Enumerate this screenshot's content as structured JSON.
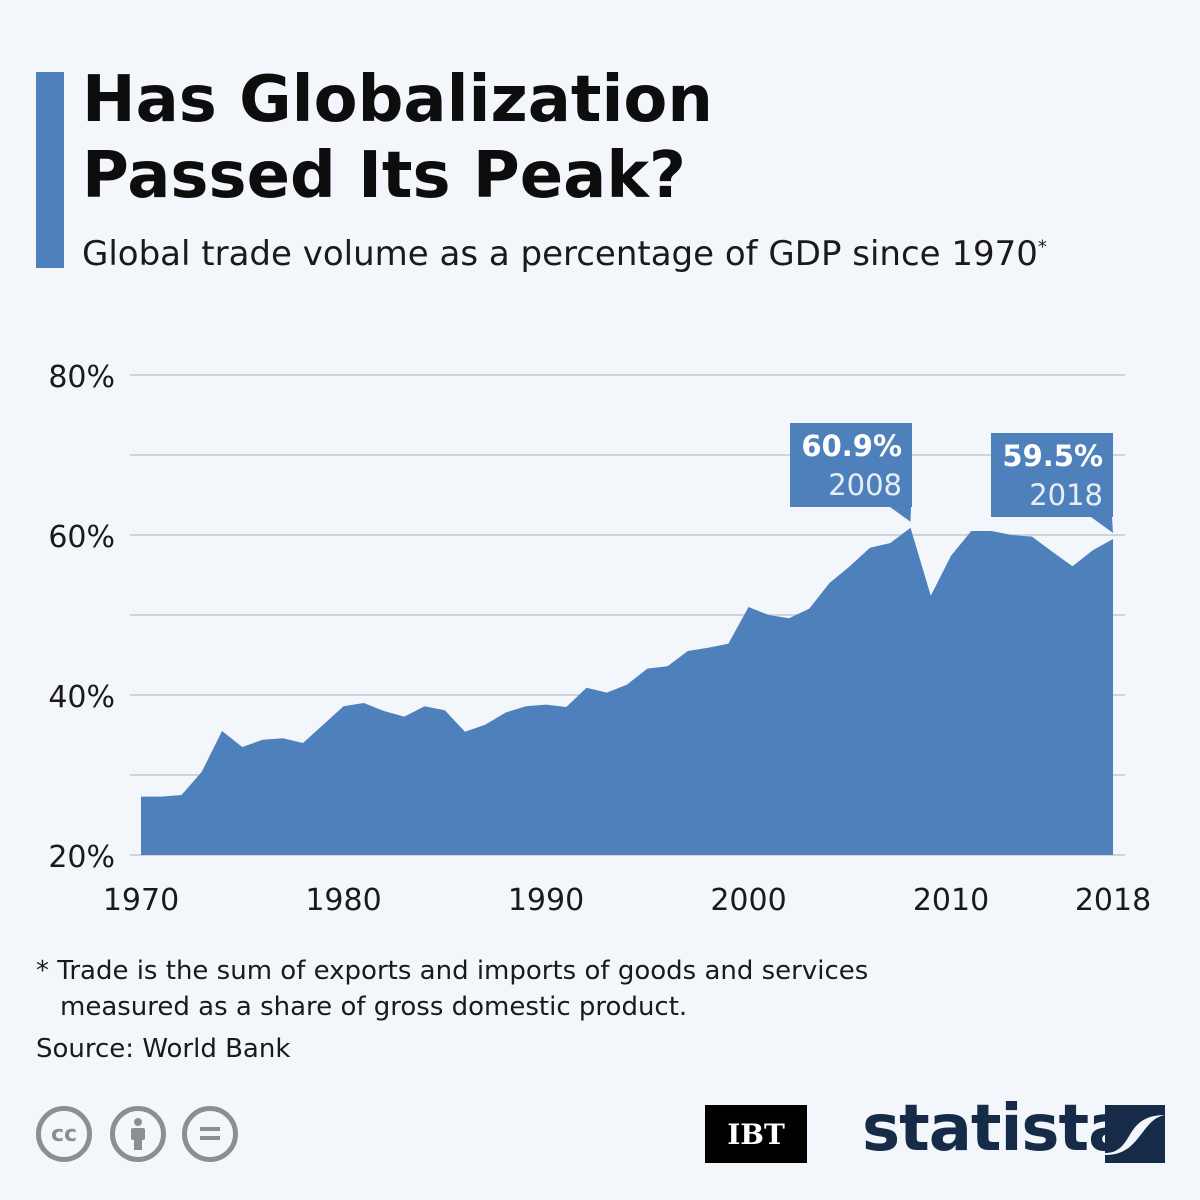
{
  "title": "Has Globalization Passed Its Peak?",
  "title_lines": [
    "Has Globalization",
    "Passed Its Peak?"
  ],
  "subtitle": "Global trade volume as a percentage of GDP since 1970",
  "subtitle_mark": "*",
  "footnote_lines": [
    "* Trade is the sum of exports and imports of goods and services",
    "measured as a share of gross domestic product."
  ],
  "source": "Source: World Bank",
  "logos": {
    "ibt": "IBT",
    "statista": "statista"
  },
  "colors": {
    "area": "#4e81bc",
    "grid": "#c4c8cc",
    "background": "#f3f7fb"
  },
  "chart_data": {
    "type": "area",
    "title": "Has Globalization Passed Its Peak?",
    "subtitle": "Global trade volume as a percentage of GDP since 1970",
    "ylim": [
      20,
      80
    ],
    "yticks": [
      20,
      40,
      60,
      80
    ],
    "ytick_labels": [
      "20%",
      "40%",
      "60%",
      "80%"
    ],
    "xticks": [
      1970,
      1980,
      1990,
      2000,
      2010,
      2018
    ],
    "xtick_labels": [
      "1970",
      "1980",
      "1990",
      "2000",
      "2010",
      "2018"
    ],
    "grid": true,
    "x": [
      1970,
      1971,
      1972,
      1973,
      1974,
      1975,
      1976,
      1977,
      1978,
      1979,
      1980,
      1981,
      1982,
      1983,
      1984,
      1985,
      1986,
      1987,
      1988,
      1989,
      1990,
      1991,
      1992,
      1993,
      1994,
      1995,
      1996,
      1997,
      1998,
      1999,
      2000,
      2001,
      2002,
      2003,
      2004,
      2005,
      2006,
      2007,
      2008,
      2009,
      2010,
      2011,
      2012,
      2013,
      2014,
      2015,
      2016,
      2017,
      2018
    ],
    "values": [
      27.3,
      27.3,
      27.5,
      30.4,
      35.5,
      33.5,
      34.4,
      34.6,
      34.0,
      36.3,
      38.6,
      39.0,
      38.0,
      37.3,
      38.6,
      38.1,
      35.4,
      36.3,
      37.8,
      38.6,
      38.8,
      38.5,
      40.9,
      40.3,
      41.3,
      43.3,
      43.6,
      45.5,
      45.9,
      46.4,
      51.0,
      50.0,
      49.6,
      50.8,
      54.0,
      56.1,
      58.4,
      59.0,
      60.9,
      52.4,
      57.4,
      60.5,
      60.5,
      60.0,
      59.8,
      57.9,
      56.1,
      58.1,
      59.5
    ],
    "annotations": [
      {
        "year": 2008,
        "value_label": "60.9%",
        "year_label": "2008"
      },
      {
        "year": 2018,
        "value_label": "59.5%",
        "year_label": "2018"
      }
    ]
  }
}
